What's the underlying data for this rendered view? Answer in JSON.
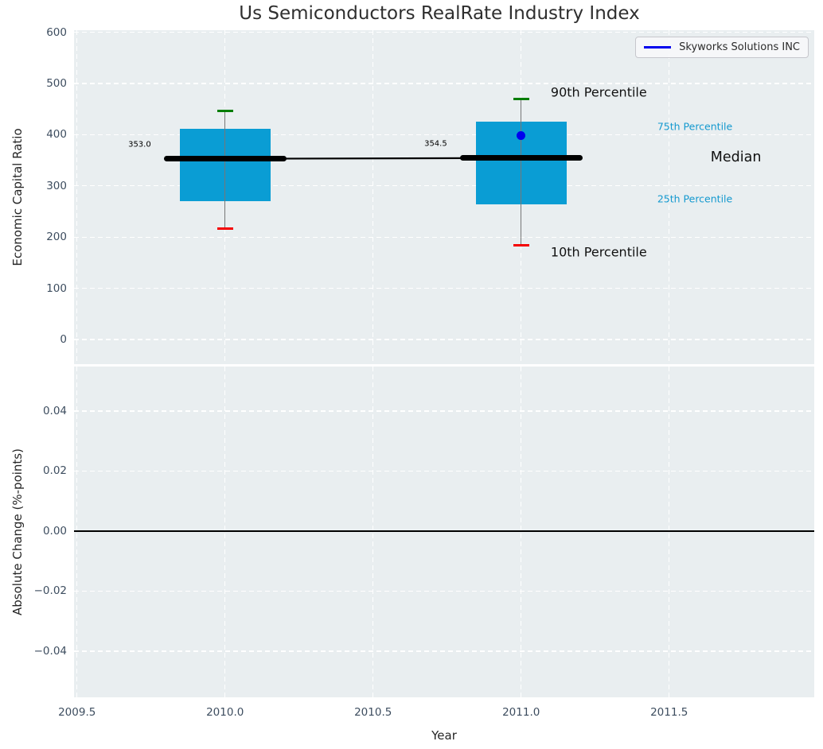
{
  "title": "Us Semiconductors RealRate Industry Index",
  "legend": {
    "label": "Skyworks Solutions INC"
  },
  "colors": {
    "axes_bg": "#e9eef0",
    "grid": "#ffffff",
    "box_fill": "#0a9dd4",
    "cyan_text": "#1499cf",
    "tick_text": "#3d4d5f",
    "series_blue": "#0000ee",
    "cap_high_green": "#007d00",
    "cap_low_red": "#f40000",
    "whisker_gray": "#777777",
    "median_black": "#000000"
  },
  "chart_data": [
    {
      "type": "boxplot-timeseries",
      "title": "Us Semiconductors RealRate Industry Index",
      "ylabel": "Economic Capital Ratio",
      "xlim": [
        2009.49,
        2011.99
      ],
      "ylim": [
        -48,
        604
      ],
      "grid": "white dashed, on",
      "legend_position": "upper right",
      "xticks": [
        {
          "value": 2009.5,
          "label": "2009.5"
        },
        {
          "value": 2010.0,
          "label": "2010.0"
        },
        {
          "value": 2010.5,
          "label": "2010.5"
        },
        {
          "value": 2011.0,
          "label": "2011.0"
        },
        {
          "value": 2011.5,
          "label": "2011.5"
        }
      ],
      "yticks": [
        {
          "value": 600,
          "label": "600"
        },
        {
          "value": 500,
          "label": "500"
        },
        {
          "value": 400,
          "label": "400"
        },
        {
          "value": 300,
          "label": "300"
        },
        {
          "value": 200,
          "label": "200"
        },
        {
          "value": 100,
          "label": "100"
        },
        {
          "value": 0,
          "label": "0"
        }
      ],
      "boxes": [
        {
          "x": 2010,
          "p10": 216,
          "p25": 270,
          "median": 353.0,
          "p75": 412,
          "p90": 447,
          "median_label": "353.0"
        },
        {
          "x": 2011,
          "p10": 184,
          "p25": 264,
          "median": 354.5,
          "p75": 426,
          "p90": 470,
          "median_label": "354.5"
        }
      ],
      "median_trend": [
        {
          "x": 2010,
          "y": 353.0
        },
        {
          "x": 2011,
          "y": 354.5
        }
      ],
      "series": [
        {
          "name": "Skyworks Solutions INC",
          "color": "#0000ee",
          "points": [
            {
              "x": 2011,
              "y": 398
            }
          ]
        }
      ],
      "annotations": [
        {
          "text": "90th Percentile",
          "x": 2011.1,
          "y": 483,
          "style": "black-large"
        },
        {
          "text": "75th Percentile",
          "x": 2011.46,
          "y": 416,
          "style": "cyan-small"
        },
        {
          "text": "Median",
          "x": 2011.64,
          "y": 355,
          "style": "black-xlarge"
        },
        {
          "text": "25th Percentile",
          "x": 2011.46,
          "y": 275,
          "style": "cyan-small"
        },
        {
          "text": "10th Percentile",
          "x": 2011.1,
          "y": 171,
          "style": "black-large"
        }
      ]
    },
    {
      "type": "line",
      "xlabel": "Year",
      "ylabel": "Absolute Change (%-points)",
      "xlim": [
        2009.49,
        2011.99
      ],
      "ylim": [
        -0.0554,
        0.0548
      ],
      "grid": "white dashed, on",
      "xticks": [
        {
          "value": 2009.5,
          "label": "2009.5"
        },
        {
          "value": 2010.0,
          "label": "2010.0"
        },
        {
          "value": 2010.5,
          "label": "2010.5"
        },
        {
          "value": 2011.0,
          "label": "2011.0"
        },
        {
          "value": 2011.5,
          "label": "2011.5"
        }
      ],
      "yticks": [
        {
          "value": 0.04,
          "label": "0.04"
        },
        {
          "value": 0.02,
          "label": "0.02"
        },
        {
          "value": 0.0,
          "label": "0.00"
        },
        {
          "value": -0.02,
          "label": "−0.02"
        },
        {
          "value": -0.04,
          "label": "−0.04"
        }
      ],
      "zero_line": 0,
      "series": []
    }
  ]
}
